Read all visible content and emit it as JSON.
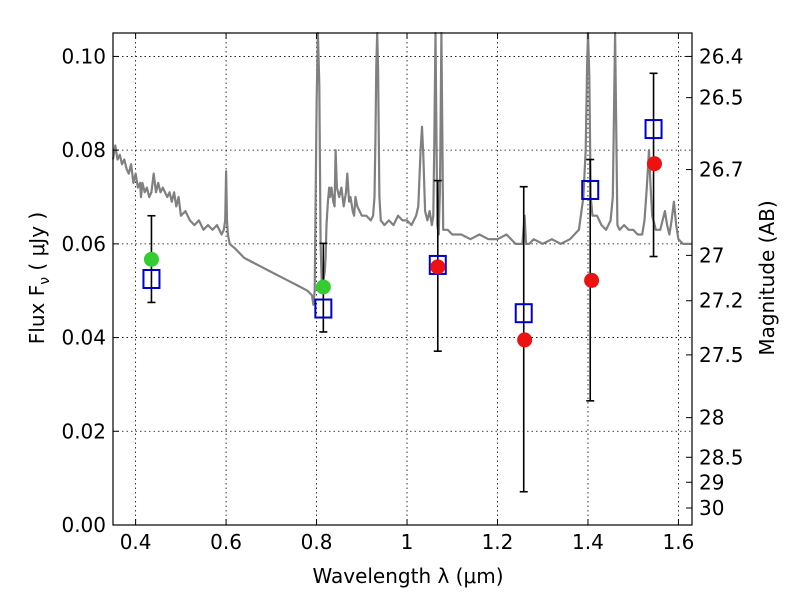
{
  "chart_data": {
    "type": "scatter",
    "xlabel": "Wavelength  λ (μm)",
    "ylabel": "Flux  F",
    "ylabel_sub": "ν",
    "ylabel_unit": " ( μJy )",
    "y2label": "Magnitude (AB)",
    "xlim": [
      0.35,
      1.63
    ],
    "ylim": [
      0.0,
      0.105
    ],
    "grid": true,
    "x_ticks": [
      {
        "value": 0.4,
        "label": "0.4"
      },
      {
        "value": 0.6,
        "label": "0.6"
      },
      {
        "value": 0.8,
        "label": "0.8"
      },
      {
        "value": 1.0,
        "label": "1"
      },
      {
        "value": 1.2,
        "label": "1.2"
      },
      {
        "value": 1.4,
        "label": "1.4"
      },
      {
        "value": 1.6,
        "label": "1.6"
      }
    ],
    "y_ticks": [
      {
        "value": 0.0,
        "label": "0.00"
      },
      {
        "value": 0.02,
        "label": "0.02"
      },
      {
        "value": 0.04,
        "label": "0.04"
      },
      {
        "value": 0.06,
        "label": "0.06"
      },
      {
        "value": 0.08,
        "label": "0.08"
      },
      {
        "value": 0.1,
        "label": "0.10"
      }
    ],
    "y2_ticks": [
      {
        "value": 26.4,
        "label": "26.4"
      },
      {
        "value": 26.5,
        "label": "26.5"
      },
      {
        "value": 26.7,
        "label": "26.7"
      },
      {
        "value": 27,
        "label": "27"
      },
      {
        "value": 27.2,
        "label": "27.2"
      },
      {
        "value": 27.5,
        "label": "27.5"
      },
      {
        "value": 28,
        "label": "28"
      },
      {
        "value": 28.5,
        "label": "28.5"
      },
      {
        "value": 29,
        "label": "29"
      },
      {
        "value": 30,
        "label": "30"
      }
    ],
    "series": [
      {
        "kind": "line",
        "color": "#808080",
        "points": [
          [
            0.35,
            0.078
          ],
          [
            0.355,
            0.081
          ],
          [
            0.36,
            0.078
          ],
          [
            0.365,
            0.079
          ],
          [
            0.37,
            0.077
          ],
          [
            0.375,
            0.078
          ],
          [
            0.38,
            0.076
          ],
          [
            0.385,
            0.075
          ],
          [
            0.39,
            0.077
          ],
          [
            0.395,
            0.073
          ],
          [
            0.4,
            0.075
          ],
          [
            0.405,
            0.072
          ],
          [
            0.41,
            0.073
          ],
          [
            0.412,
            0.07
          ],
          [
            0.415,
            0.073
          ],
          [
            0.42,
            0.071
          ],
          [
            0.425,
            0.072
          ],
          [
            0.43,
            0.07
          ],
          [
            0.435,
            0.071
          ],
          [
            0.44,
            0.075
          ],
          [
            0.445,
            0.071
          ],
          [
            0.45,
            0.073
          ],
          [
            0.455,
            0.071
          ],
          [
            0.46,
            0.072
          ],
          [
            0.465,
            0.071
          ],
          [
            0.47,
            0.07
          ],
          [
            0.475,
            0.071
          ],
          [
            0.48,
            0.069
          ],
          [
            0.485,
            0.071
          ],
          [
            0.49,
            0.068
          ],
          [
            0.495,
            0.07
          ],
          [
            0.5,
            0.066
          ],
          [
            0.51,
            0.067
          ],
          [
            0.52,
            0.065
          ],
          [
            0.53,
            0.064
          ],
          [
            0.54,
            0.065
          ],
          [
            0.55,
            0.063
          ],
          [
            0.56,
            0.064
          ],
          [
            0.57,
            0.063
          ],
          [
            0.58,
            0.064
          ],
          [
            0.59,
            0.062
          ],
          [
            0.595,
            0.063
          ],
          [
            0.598,
            0.065
          ],
          [
            0.6,
            0.0755
          ],
          [
            0.602,
            0.065
          ],
          [
            0.604,
            0.062
          ],
          [
            0.608,
            0.06
          ],
          [
            0.62,
            0.059
          ],
          [
            0.64,
            0.057
          ],
          [
            0.66,
            0.056
          ],
          [
            0.68,
            0.055
          ],
          [
            0.7,
            0.054
          ],
          [
            0.72,
            0.053
          ],
          [
            0.74,
            0.052
          ],
          [
            0.76,
            0.051
          ],
          [
            0.78,
            0.05
          ],
          [
            0.79,
            0.049
          ],
          [
            0.793,
            0.047
          ],
          [
            0.796,
            0.05
          ],
          [
            0.8,
            0.09
          ],
          [
            0.803,
            0.106
          ],
          [
            0.806,
            0.094
          ],
          [
            0.809,
            0.06
          ],
          [
            0.812,
            0.05
          ],
          [
            0.815,
            0.052
          ],
          [
            0.818,
            0.054
          ],
          [
            0.82,
            0.057
          ],
          [
            0.822,
            0.064
          ],
          [
            0.825,
            0.069
          ],
          [
            0.828,
            0.072
          ],
          [
            0.83,
            0.07
          ],
          [
            0.833,
            0.072
          ],
          [
            0.837,
            0.069
          ],
          [
            0.84,
            0.068
          ],
          [
            0.842,
            0.08
          ],
          [
            0.845,
            0.072
          ],
          [
            0.85,
            0.07
          ],
          [
            0.855,
            0.072
          ],
          [
            0.86,
            0.068
          ],
          [
            0.865,
            0.071
          ],
          [
            0.868,
            0.075
          ],
          [
            0.872,
            0.069
          ],
          [
            0.875,
            0.07
          ],
          [
            0.88,
            0.067
          ],
          [
            0.883,
            0.066
          ],
          [
            0.886,
            0.07
          ],
          [
            0.89,
            0.068
          ],
          [
            0.9,
            0.066
          ],
          [
            0.91,
            0.066
          ],
          [
            0.92,
            0.065
          ],
          [
            0.925,
            0.066
          ],
          [
            0.928,
            0.07
          ],
          [
            0.93,
            0.082
          ],
          [
            0.932,
            0.098
          ],
          [
            0.934,
            0.106
          ],
          [
            0.936,
            0.097
          ],
          [
            0.939,
            0.07
          ],
          [
            0.942,
            0.065
          ],
          [
            0.95,
            0.064
          ],
          [
            0.96,
            0.065
          ],
          [
            0.97,
            0.064
          ],
          [
            0.98,
            0.066
          ],
          [
            0.99,
            0.065
          ],
          [
            1.0,
            0.065
          ],
          [
            1.01,
            0.064
          ],
          [
            1.02,
            0.066
          ],
          [
            1.025,
            0.068
          ],
          [
            1.03,
            0.08
          ],
          [
            1.033,
            0.085
          ],
          [
            1.036,
            0.079
          ],
          [
            1.04,
            0.067
          ],
          [
            1.045,
            0.065
          ],
          [
            1.05,
            0.067
          ],
          [
            1.055,
            0.064
          ],
          [
            1.058,
            0.066
          ],
          [
            1.06,
            0.08
          ],
          [
            1.063,
            0.106
          ],
          [
            1.067,
            0.064
          ],
          [
            1.07,
            0.062
          ],
          [
            1.073,
            0.072
          ],
          [
            1.076,
            0.106
          ],
          [
            1.08,
            0.063
          ],
          [
            1.09,
            0.063
          ],
          [
            1.1,
            0.062
          ],
          [
            1.12,
            0.062
          ],
          [
            1.14,
            0.061
          ],
          [
            1.16,
            0.062
          ],
          [
            1.18,
            0.061
          ],
          [
            1.2,
            0.061
          ],
          [
            1.22,
            0.062
          ],
          [
            1.24,
            0.06
          ],
          [
            1.255,
            0.06
          ],
          [
            1.26,
            0.066
          ],
          [
            1.263,
            0.06
          ],
          [
            1.27,
            0.06
          ],
          [
            1.28,
            0.061
          ],
          [
            1.3,
            0.06
          ],
          [
            1.32,
            0.061
          ],
          [
            1.34,
            0.06
          ],
          [
            1.36,
            0.061
          ],
          [
            1.38,
            0.063
          ],
          [
            1.39,
            0.07
          ],
          [
            1.395,
            0.08
          ],
          [
            1.398,
            0.098
          ],
          [
            1.4,
            0.106
          ],
          [
            1.403,
            0.096
          ],
          [
            1.406,
            0.07
          ],
          [
            1.41,
            0.066
          ],
          [
            1.42,
            0.066
          ],
          [
            1.43,
            0.064
          ],
          [
            1.44,
            0.063
          ],
          [
            1.45,
            0.065
          ],
          [
            1.455,
            0.07
          ],
          [
            1.46,
            0.106
          ],
          [
            1.465,
            0.064
          ],
          [
            1.47,
            0.063
          ],
          [
            1.48,
            0.064
          ],
          [
            1.49,
            0.063
          ],
          [
            1.5,
            0.063
          ],
          [
            1.51,
            0.062
          ],
          [
            1.52,
            0.062
          ],
          [
            1.525,
            0.065
          ],
          [
            1.53,
            0.072
          ],
          [
            1.535,
            0.08
          ],
          [
            1.538,
            0.073
          ],
          [
            1.542,
            0.066
          ],
          [
            1.55,
            0.063
          ],
          [
            1.56,
            0.063
          ],
          [
            1.565,
            0.065
          ],
          [
            1.57,
            0.067
          ],
          [
            1.575,
            0.064
          ],
          [
            1.58,
            0.062
          ],
          [
            1.585,
            0.065
          ],
          [
            1.59,
            0.069
          ],
          [
            1.595,
            0.064
          ],
          [
            1.6,
            0.061
          ],
          [
            1.61,
            0.06
          ],
          [
            1.62,
            0.06
          ],
          [
            1.63,
            0.06
          ]
        ]
      },
      {
        "kind": "errorbar",
        "color": "#000000",
        "points": [
          {
            "x": 0.435,
            "low": 0.0475,
            "high": 0.066
          },
          {
            "x": 0.815,
            "low": 0.0412,
            "high": 0.0601
          },
          {
            "x": 1.068,
            "low": 0.0371,
            "high": 0.0735
          },
          {
            "x": 1.258,
            "low": 0.0071,
            "high": 0.0722
          },
          {
            "x": 1.405,
            "low": 0.0265,
            "high": 0.078
          },
          {
            "x": 1.545,
            "low": 0.0573,
            "high": 0.0964
          }
        ]
      },
      {
        "kind": "open-square",
        "color": "#0000cc",
        "points": [
          [
            0.435,
            0.0525
          ],
          [
            0.815,
            0.0462
          ],
          [
            1.068,
            0.0555
          ],
          [
            1.258,
            0.0452
          ],
          [
            1.405,
            0.0715
          ],
          [
            1.545,
            0.0845
          ]
        ]
      },
      {
        "kind": "filled-circle",
        "color": "#33cc33",
        "points": [
          [
            0.435,
            0.0567
          ],
          [
            0.815,
            0.0508
          ]
        ]
      },
      {
        "kind": "filled-circle",
        "color": "#ee1111",
        "points": [
          [
            1.068,
            0.0551
          ],
          [
            1.26,
            0.0395
          ],
          [
            1.408,
            0.0522
          ],
          [
            1.547,
            0.0771
          ]
        ]
      }
    ]
  }
}
